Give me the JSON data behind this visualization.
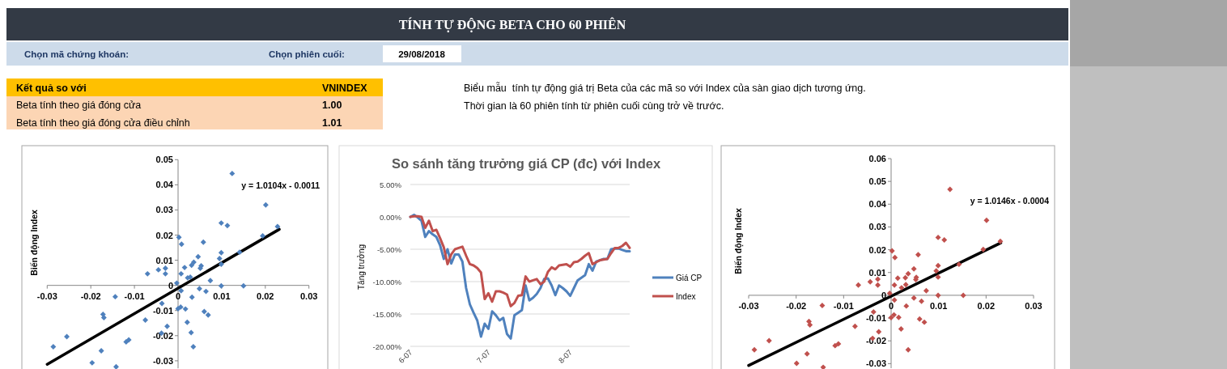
{
  "chart_data": [
    {
      "type": "other",
      "title": "TÍNH TỰ ĐỘNG BETA CHO 60 PHIÊN",
      "annotations": [
        "Chọn mã chứng khoán:",
        "Chọn phiên cuối:",
        "29/08/2018",
        "Kết quả so với",
        "VNINDEX",
        "Beta tính theo giá đóng cửa",
        "1.00",
        "Beta tính theo giá đóng cửa điều chỉnh",
        "1.01",
        "Biểu mẫu  tính tự động giá trị Beta của các mã so với Index của sàn giao dịch tương ứng.",
        "Thời gian là 60 phiên tính từ phiên cuối cùng trở về trước."
      ]
    },
    {
      "type": "scatter",
      "ylabel": "Biến động Index",
      "annotations": [
        "y = 1.0104x - 0.0011"
      ],
      "xlim": [
        -0.03,
        0.03
      ],
      "xticks": [
        -0.03,
        -0.02,
        -0.01,
        0,
        0.01,
        0.02,
        0.03
      ],
      "ylim": [
        -0.033,
        0.05
      ],
      "yticks": [
        -0.03,
        -0.02,
        -0.01,
        0,
        0.01,
        0.02,
        0.03,
        0.04,
        0.05
      ],
      "series": [
        {
          "color": "#4f81bd",
          "marker": "diamond",
          "x": [
            0.0002,
            0.0008,
            0.0058,
            0.0099,
            0.0113,
            0.0201,
            0.0228,
            0.0194,
            0.0141,
            0.0099,
            0.0095,
            0.0099,
            0.0046,
            0.0036,
            0.0031,
            0.0053,
            0.0051,
            0.0015,
            0.0007,
            0.0022,
            0.0028,
            -0.0003,
            -0.0029,
            -0.0029,
            -0.0045,
            -0.007,
            0.0074,
            0.0099,
            0.015,
            0.0007,
            0.0049,
            0.0064,
            0.0032,
            -0.0037,
            -0.0144,
            0,
            0.0006,
            0.0017,
            0.006,
            0.0069,
            0.0021,
            -0.0075,
            -0.0025,
            -0.0038,
            0.003,
            0.0035,
            -0.0172,
            -0.017,
            -0.0119,
            -0.0113,
            -0.0255,
            -0.0286,
            -0.0176,
            -0.0197,
            -0.0142,
            0.0124
          ],
          "values": [
            0.0191,
            0.0164,
            0.0172,
            0.0248,
            0.0238,
            0.032,
            0.0234,
            0.0197,
            0.0132,
            0.013,
            0.0107,
            0.0084,
            0.0114,
            0.0092,
            0.008,
            0.0078,
            0.0068,
            0.0071,
            0.0046,
            0.003,
            0.0033,
            0.0009,
            0.0068,
            0.0046,
            0.0062,
            0.0046,
            0.0019,
            -0.0002,
            -0.0002,
            -0.0021,
            -0.0013,
            -0.0024,
            -0.0047,
            -0.0072,
            -0.0045,
            -0.0093,
            -0.0086,
            -0.0094,
            -0.0104,
            -0.0118,
            -0.0147,
            -0.0138,
            -0.0163,
            -0.019,
            -0.0188,
            -0.0244,
            -0.0115,
            -0.0128,
            -0.0225,
            -0.0217,
            -0.0204,
            -0.0244,
            -0.026,
            -0.0308,
            -0.0324,
            0.0445
          ]
        },
        {
          "type": "line",
          "color": "#000000",
          "x": [
            -0.03,
            0.0232
          ],
          "values": [
            -0.0314,
            0.0223
          ]
        }
      ]
    },
    {
      "type": "line",
      "title": "So sánh tăng trưởng giá CP (đc) với Index",
      "ylabel": "Tăng trưởng",
      "legend": "right",
      "grid": "y",
      "ylim": [
        -20,
        5
      ],
      "yticks": [
        {
          "value": -20,
          "label": "-20.00%"
        },
        {
          "value": -15,
          "label": "-15.00%"
        },
        {
          "value": -10,
          "label": "-10.00%"
        },
        {
          "value": -5,
          "label": "-5.00%"
        },
        {
          "value": 0,
          "label": "0.00%"
        },
        {
          "value": 5,
          "label": "5.00%"
        }
      ],
      "categories": [
        "6-07",
        null,
        null,
        null,
        null,
        null,
        null,
        null,
        null,
        null,
        null,
        null,
        null,
        null,
        null,
        null,
        null,
        null,
        null,
        null,
        null,
        "7-07",
        null,
        null,
        null,
        null,
        null,
        null,
        null,
        null,
        null,
        null,
        null,
        null,
        null,
        null,
        null,
        null,
        null,
        null,
        null,
        null,
        null,
        "8-07",
        null,
        null,
        null,
        null,
        null,
        null,
        null,
        null,
        null,
        null,
        null,
        null,
        null,
        null,
        null,
        null
      ],
      "series": [
        {
          "name": "Giá CP",
          "color": "#4f81bd",
          "values": [
            0,
            0.3,
            -0.1,
            -0.6,
            -3.1,
            -2.2,
            -2.7,
            -3.1,
            -4.4,
            -6.5,
            -5.0,
            -7.2,
            -5.8,
            -5.8,
            -6.9,
            -11.0,
            -13.5,
            -14.8,
            -16.0,
            -18.5,
            -16.5,
            -17.3,
            -14.6,
            -15.2,
            -16.0,
            -15.6,
            -18.1,
            -18.8,
            -15.2,
            -14.8,
            -14.4,
            -10.6,
            -12.9,
            -12.5,
            -11.9,
            -11.0,
            -9.6,
            -9.5,
            -10.6,
            -12.1,
            -10.6,
            -11.0,
            -11.5,
            -12.2,
            -11.0,
            -9.8,
            -9.4,
            -9.0,
            -7.3,
            -8.3,
            -6.9,
            -6.7,
            -6.5,
            -6.5,
            -5.0,
            -4.9,
            -4.9,
            -5.1,
            -5.3,
            -5.3
          ]
        },
        {
          "name": "Index",
          "color": "#c0504d",
          "values": [
            0,
            0.1,
            0.1,
            0,
            -1.7,
            -0.6,
            -2.2,
            -2.0,
            -3.3,
            -4.7,
            -7.3,
            -5.8,
            -5.0,
            -4.8,
            -4.6,
            -6.0,
            -7.3,
            -7.5,
            -7.9,
            -8.6,
            -12.7,
            -11.8,
            -13.1,
            -11.5,
            -11.5,
            -11.7,
            -12.0,
            -13.8,
            -13.3,
            -12.2,
            -12.1,
            -9.2,
            -10.0,
            -9.8,
            -9.6,
            -10.4,
            -10.0,
            -8.5,
            -7.8,
            -8.1,
            -7.5,
            -7.4,
            -7.3,
            -7.7,
            -7.0,
            -6.9,
            -6.5,
            -6.0,
            -5.6,
            -7.3,
            -7.0,
            -6.7,
            -6.6,
            -6.5,
            -5.6,
            -4.8,
            -4.8,
            -4.5,
            -4.0,
            -4.8
          ]
        }
      ]
    },
    {
      "type": "scatter",
      "ylabel": "Biến động Index",
      "annotations": [
        "y = 1.0146x - 0.0004"
      ],
      "xlim": [
        -0.03,
        0.03
      ],
      "xticks": [
        -0.03,
        -0.02,
        -0.01,
        0,
        0.01,
        0.02,
        0.03
      ],
      "ylim": [
        -0.032,
        0.06
      ],
      "yticks": [
        -0.03,
        -0.02,
        -0.01,
        0,
        0.01,
        0.02,
        0.03,
        0.04,
        0.05,
        0.06
      ],
      "series": [
        {
          "color": "#c0504d",
          "marker": "diamond",
          "x": [
            0.0002,
            0.0008,
            0.0057,
            0.0099,
            0.0112,
            0.0124,
            0.0201,
            0.023,
            0.0194,
            0.0143,
            0.0099,
            0.0095,
            0.0099,
            0.0048,
            0.0036,
            0.003,
            0.0053,
            0.0052,
            0.0014,
            0.0007,
            0.0022,
            0.0031,
            -0.0003,
            -0.0028,
            -0.0028,
            -0.0044,
            -0.0069,
            0.0074,
            0.0099,
            0.0152,
            0.0007,
            0.0048,
            0.0064,
            0.0032,
            -0.0037,
            -0.0145,
            0,
            0.0006,
            0.0016,
            0.006,
            0.007,
            0.0021,
            -0.0076,
            -0.0026,
            -0.0039,
            0.0036,
            -0.0173,
            -0.0171,
            -0.0118,
            -0.0111,
            -0.0257,
            -0.0288,
            -0.0177,
            -0.0199,
            -0.0143
          ],
          "values": [
            0.0195,
            0.0166,
            0.0178,
            0.0254,
            0.0243,
            0.0465,
            0.0329,
            0.0237,
            0.0201,
            0.0136,
            0.013,
            0.0107,
            0.008,
            0.0116,
            0.0095,
            0.0077,
            0.0079,
            0.0069,
            0.0075,
            0.0045,
            0.0033,
            0.0047,
            0.0009,
            0.0071,
            0.0045,
            0.0059,
            0.0045,
            0.002,
            0,
            0,
            -0.0021,
            -0.0012,
            -0.0026,
            -0.0047,
            -0.0073,
            -0.0045,
            -0.0098,
            -0.0086,
            -0.0097,
            -0.0104,
            -0.0118,
            -0.0148,
            -0.0136,
            -0.016,
            -0.0189,
            -0.0239,
            -0.0115,
            -0.013,
            -0.0221,
            -0.0213,
            -0.0199,
            -0.0239,
            -0.0257,
            -0.0299,
            -0.0316
          ]
        },
        {
          "type": "line",
          "color": "#000000",
          "x": [
            -0.03,
            0.0231
          ],
          "values": [
            -0.0308,
            0.023
          ]
        }
      ]
    }
  ]
}
